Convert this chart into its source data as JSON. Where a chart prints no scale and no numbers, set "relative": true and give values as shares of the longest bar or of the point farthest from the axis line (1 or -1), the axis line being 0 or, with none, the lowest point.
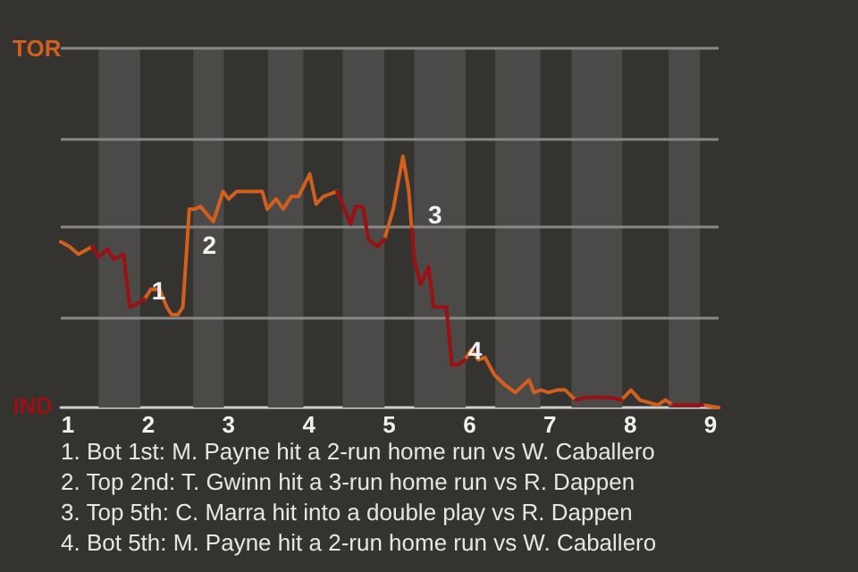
{
  "chart_data": {
    "type": "line",
    "relative": true,
    "legend": "left",
    "ref_lines": [
      {
        "axis": "y",
        "value": 0.36,
        "color": "#8a8886"
      },
      {
        "axis": "y",
        "value": 0.72,
        "color": "#8a8886"
      },
      {
        "axis": "y",
        "value": 1.07,
        "color": "#8a8886"
      },
      {
        "axis": "y",
        "value": 1.43,
        "color": "#8a8886"
      }
    ],
    "xlim": [
      0.91,
      9.1
    ],
    "xticks": [
      1,
      2,
      3,
      4,
      5,
      6,
      7,
      8,
      9
    ],
    "series": [
      {
        "name": "TOR",
        "color": "#d35f1e",
        "x": [
          0.91,
          1.02,
          1.13,
          1.3,
          null,
          1.95,
          2.03,
          2.14,
          2.23,
          2.29,
          2.37,
          2.43,
          2.47,
          2.51,
          2.58,
          2.65,
          2.81,
          2.93,
          3.0,
          3.1,
          3.42,
          3.48,
          3.59,
          3.68,
          3.78,
          3.87,
          4.01,
          4.09,
          4.18,
          4.35,
          null,
          4.94,
          5.05,
          5.17,
          5.24,
          5.28,
          null,
          5.94,
          6.02,
          6.11,
          6.19,
          6.31,
          6.44,
          6.57,
          6.74,
          6.8,
          6.89,
          6.98,
          7.09,
          7.19,
          7.32,
          null,
          7.89,
          8.01,
          8.12,
          8.34,
          8.44,
          8.53,
          null,
          8.9,
          9.1
        ],
        "values": [
          0.66,
          0.64,
          0.61,
          0.64,
          null,
          0.43,
          0.47,
          0.47,
          0.4,
          0.37,
          0.37,
          0.4,
          0.59,
          0.79,
          0.79,
          0.8,
          0.74,
          0.86,
          0.83,
          0.86,
          0.86,
          0.79,
          0.83,
          0.79,
          0.84,
          0.84,
          0.93,
          0.81,
          0.84,
          0.86,
          null,
          0.67,
          0.79,
          1,
          0.87,
          0.71,
          null,
          0.19,
          0.23,
          0.19,
          0.2,
          0.13,
          0.09,
          0.06,
          0.11,
          0.06,
          0.07,
          0.06,
          0.07,
          0.07,
          0.03,
          null,
          0.03,
          0.07,
          0.03,
          0.01,
          0.03,
          0.01,
          null,
          0.01,
          0
        ]
      },
      {
        "name": "IND",
        "color": "#9b1012",
        "x": [
          1.3,
          1.38,
          1.49,
          1.57,
          1.69,
          1.77,
          1.84,
          1.95,
          null,
          4.35,
          4.43,
          4.52,
          4.58,
          4.67,
          4.74,
          4.85,
          4.94,
          null,
          5.28,
          5.31,
          5.39,
          5.49,
          5.55,
          5.71,
          5.78,
          5.85,
          5.94,
          null,
          7.32,
          7.44,
          7.74,
          7.89,
          null,
          8.53,
          8.9
        ],
        "values": [
          0.64,
          0.6,
          0.63,
          0.59,
          0.61,
          0.4,
          0.41,
          0.43,
          null,
          0.86,
          0.8,
          0.73,
          0.8,
          0.8,
          0.67,
          0.64,
          0.67,
          null,
          0.71,
          0.59,
          0.49,
          0.56,
          0.4,
          0.4,
          0.17,
          0.17,
          0.19,
          null,
          0.03,
          0.04,
          0.04,
          0.03,
          null,
          0.01,
          0.01
        ]
      }
    ],
    "bands": [
      {
        "axis": "x",
        "from": 1.38,
        "to": 1.9,
        "color": "#4b4a48"
      },
      {
        "axis": "x",
        "from": 2.56,
        "to": 2.94,
        "color": "#4b4a48"
      },
      {
        "axis": "x",
        "from": 3.49,
        "to": 3.93,
        "color": "#4b4a48"
      },
      {
        "axis": "x",
        "from": 4.42,
        "to": 4.94,
        "color": "#4b4a48"
      },
      {
        "axis": "x",
        "from": 5.31,
        "to": 5.95,
        "color": "#4b4a48"
      },
      {
        "axis": "x",
        "from": 6.32,
        "to": 6.88,
        "color": "#4b4a48"
      },
      {
        "axis": "x",
        "from": 7.27,
        "to": 7.9,
        "color": "#4b4a48"
      },
      {
        "axis": "x",
        "from": 8.48,
        "to": 8.87,
        "color": "#4b4a48"
      }
    ],
    "annotations": [
      {
        "text": "1",
        "x": 1.84,
        "y": 0.41
      },
      {
        "text": "2",
        "x": 2.47,
        "y": 0.59
      },
      {
        "text": "3",
        "x": 5.28,
        "y": 0.71
      },
      {
        "text": "4",
        "x": 5.78,
        "y": 0.17
      },
      "1. Bot 1st: M. Payne hit a 2-run home run vs W. Caballero",
      "2. Top 2nd: T. Gwinn hit a 3-run home run vs R. Dappen",
      "3. Top 5th: C. Marra hit into a double play vs R. Dappen",
      "4. Bot 5th: M. Payne hit a 2-run home run vs W. Caballero"
    ]
  }
}
